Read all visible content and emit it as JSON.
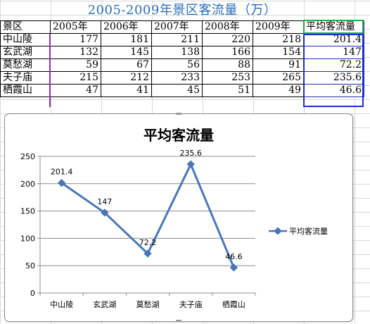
{
  "sheet": {
    "title": "2005-2009年景区客流量（万）",
    "headers": [
      "景区",
      "2005年",
      "2006年",
      "2007年",
      "2008年",
      "2009年",
      "平均客流量"
    ],
    "rows": [
      [
        "中山陵",
        "177",
        "181",
        "211",
        "220",
        "218",
        "201.4"
      ],
      [
        "玄武湖",
        "132",
        "145",
        "138",
        "166",
        "154",
        "147"
      ],
      [
        "莫愁湖",
        "59",
        "67",
        "56",
        "88",
        "91",
        "72.2"
      ],
      [
        "夫子庙",
        "215",
        "212",
        "233",
        "253",
        "265",
        "235.6"
      ],
      [
        "栖霞山",
        "47",
        "41",
        "45",
        "51",
        "49",
        "46.6"
      ]
    ]
  },
  "chart_data": {
    "type": "line",
    "title": "平均客流量",
    "categories": [
      "中山陵",
      "玄武湖",
      "莫愁湖",
      "夫子庙",
      "栖霞山"
    ],
    "series": [
      {
        "name": "平均客流量",
        "values": [
          201.4,
          147,
          72.2,
          235.6,
          46.6
        ],
        "color": "#4a76b8"
      }
    ],
    "data_labels": [
      "201.4",
      "147",
      "72.2",
      "235.6",
      "46.6"
    ],
    "yticks": [
      "0",
      "50",
      "100",
      "150",
      "200",
      "250"
    ],
    "ylim": [
      0,
      250
    ],
    "grid": true,
    "legend_position": "right"
  }
}
